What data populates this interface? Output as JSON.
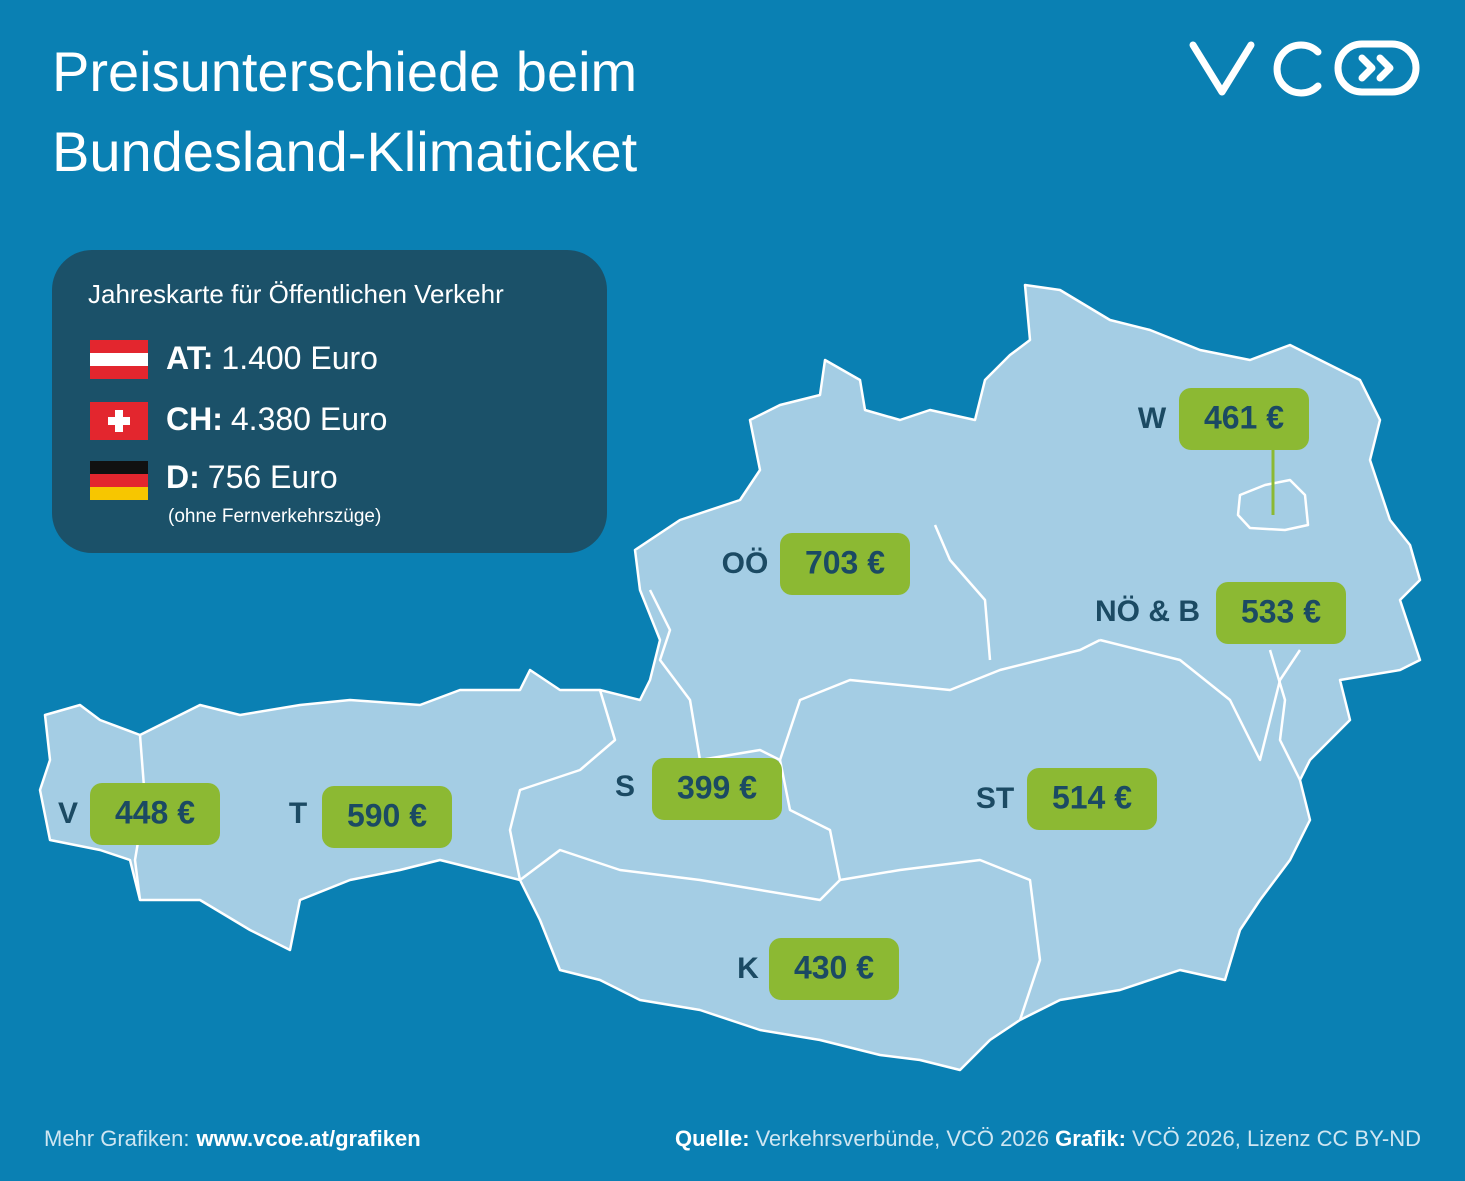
{
  "header": {
    "title_lines": [
      "Preisunterschiede beim",
      "Bundesland-Klimaticket"
    ]
  },
  "legend": {
    "title": "Jahreskarte für Öffentlichen Verkehr",
    "items": [
      {
        "code": "AT:",
        "price": "1.400 Euro"
      },
      {
        "code": "CH:",
        "price": "4.380 Euro"
      },
      {
        "code": "D:",
        "price": "756 Euro",
        "note": "(ohne Fernverkehrszüge)"
      }
    ]
  },
  "regions": [
    {
      "label": "V",
      "price": "448 €"
    },
    {
      "label": "T",
      "price": "590 €"
    },
    {
      "label": "S",
      "price": "399 €"
    },
    {
      "label": "OÖ",
      "price": "703 €"
    },
    {
      "label": "W",
      "price": "461 €"
    },
    {
      "label": "NÖ & B",
      "price": "533 €"
    },
    {
      "label": "ST",
      "price": "514 €"
    },
    {
      "label": "K",
      "price": "430 €"
    }
  ],
  "footer": {
    "more_label": "Mehr Grafiken:",
    "more_link": "www.vcoe.at/grafiken",
    "source_label": "Quelle:",
    "source": "Verkehrsverbünde, VCÖ 2026",
    "graphic_label": "Grafik:",
    "graphic": "VCÖ 2026, Lizenz CC BY-ND"
  }
}
